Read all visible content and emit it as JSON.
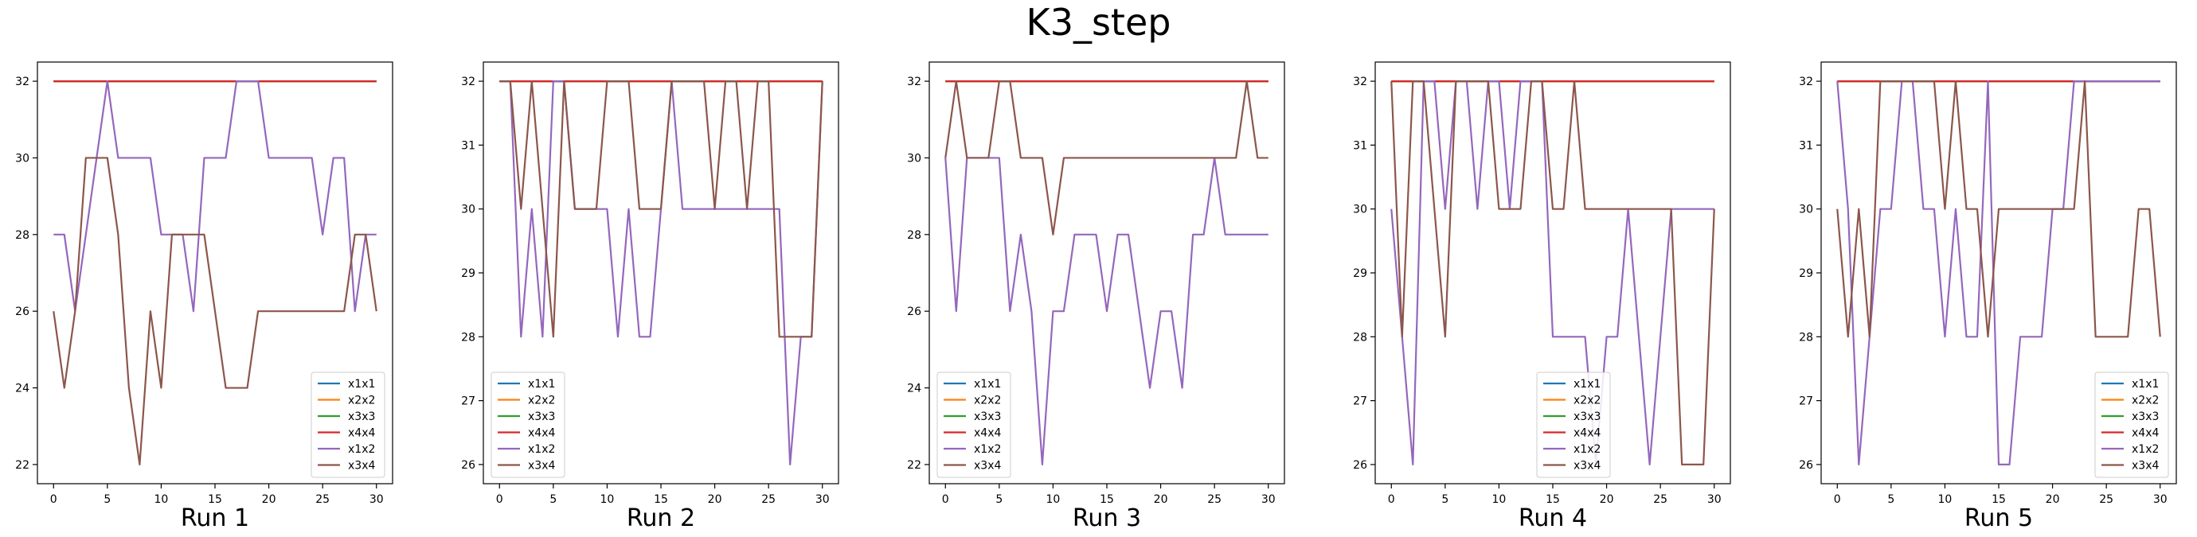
{
  "title": "K3_step",
  "colors": {
    "x1x1": "#1f77b4",
    "x2x2": "#ff7f0e",
    "x3x3": "#2ca02c",
    "x4x4": "#d62728",
    "x1x2": "#9467bd",
    "x3x4": "#8c564b"
  },
  "chart_data": [
    {
      "type": "line",
      "xlabel": "Run 1",
      "ylabel": "",
      "xlim": [
        -1.5,
        31.5
      ],
      "ylim": [
        21.5,
        32.5
      ],
      "xticks": [
        0,
        5,
        10,
        15,
        20,
        25,
        30
      ],
      "yticks": [
        22,
        24,
        26,
        28,
        30,
        32
      ],
      "legend": "bottom-right",
      "series": [
        {
          "name": "x1x1",
          "values": [
            32,
            32,
            32,
            32,
            32,
            32,
            32,
            32,
            32,
            32,
            32,
            32,
            32,
            32,
            32,
            32,
            32,
            32,
            32,
            32,
            32,
            32,
            32,
            32,
            32,
            32,
            32,
            32,
            32,
            32,
            32
          ]
        },
        {
          "name": "x2x2",
          "values": [
            32,
            32,
            32,
            32,
            32,
            32,
            32,
            32,
            32,
            32,
            32,
            32,
            32,
            32,
            32,
            32,
            32,
            32,
            32,
            32,
            32,
            32,
            32,
            32,
            32,
            32,
            32,
            32,
            32,
            32,
            32
          ]
        },
        {
          "name": "x3x3",
          "values": [
            32,
            32,
            32,
            32,
            32,
            32,
            32,
            32,
            32,
            32,
            32,
            32,
            32,
            32,
            32,
            32,
            32,
            32,
            32,
            32,
            32,
            32,
            32,
            32,
            32,
            32,
            32,
            32,
            32,
            32,
            32
          ]
        },
        {
          "name": "x4x4",
          "values": [
            32,
            32,
            32,
            32,
            32,
            32,
            32,
            32,
            32,
            32,
            32,
            32,
            32,
            32,
            32,
            32,
            32,
            32,
            32,
            32,
            32,
            32,
            32,
            32,
            32,
            32,
            32,
            32,
            32,
            32,
            32
          ]
        },
        {
          "name": "x1x2",
          "values": [
            28,
            28,
            26,
            28,
            30,
            32,
            30,
            30,
            30,
            30,
            28,
            28,
            28,
            26,
            30,
            30,
            30,
            32,
            32,
            32,
            30,
            30,
            30,
            30,
            30,
            28,
            30,
            30,
            26,
            28,
            28
          ]
        },
        {
          "name": "x3x4",
          "values": [
            26,
            24,
            26,
            30,
            30,
            30,
            28,
            24,
            22,
            26,
            24,
            28,
            28,
            28,
            28,
            26,
            24,
            24,
            24,
            26,
            26,
            26,
            26,
            26,
            26,
            26,
            26,
            26,
            28,
            28,
            26
          ]
        }
      ]
    },
    {
      "type": "line",
      "xlabel": "Run 2",
      "ylabel": "",
      "xlim": [
        -1.5,
        31.5
      ],
      "ylim": [
        25.7,
        32.3
      ],
      "xticks": [
        0,
        5,
        10,
        15,
        20,
        25,
        30
      ],
      "yticks": [
        26,
        27,
        28,
        29,
        30,
        31,
        32
      ],
      "legend": "bottom-left",
      "series": [
        {
          "name": "x1x1",
          "values": [
            32,
            32,
            32,
            32,
            32,
            32,
            32,
            32,
            32,
            32,
            32,
            32,
            32,
            32,
            32,
            32,
            32,
            32,
            32,
            32,
            32,
            32,
            32,
            32,
            32,
            32,
            32,
            32,
            32,
            32,
            32
          ]
        },
        {
          "name": "x2x2",
          "values": [
            32,
            32,
            32,
            32,
            32,
            32,
            32,
            32,
            32,
            32,
            32,
            32,
            32,
            32,
            32,
            32,
            32,
            32,
            32,
            32,
            32,
            32,
            32,
            32,
            32,
            32,
            32,
            32,
            32,
            32,
            32
          ]
        },
        {
          "name": "x3x3",
          "values": [
            32,
            32,
            32,
            32,
            32,
            32,
            32,
            32,
            32,
            32,
            32,
            32,
            32,
            32,
            32,
            32,
            32,
            32,
            32,
            32,
            32,
            32,
            32,
            32,
            32,
            32,
            32,
            32,
            32,
            32,
            32
          ]
        },
        {
          "name": "x4x4",
          "values": [
            32,
            32,
            32,
            32,
            32,
            32,
            32,
            32,
            32,
            32,
            32,
            32,
            32,
            32,
            32,
            32,
            32,
            32,
            32,
            32,
            32,
            32,
            32,
            32,
            32,
            32,
            32,
            32,
            32,
            32,
            32
          ]
        },
        {
          "name": "x1x2",
          "values": [
            32,
            32,
            28,
            30,
            28,
            32,
            32,
            30,
            30,
            30,
            30,
            28,
            30,
            28,
            28,
            30,
            32,
            30,
            30,
            30,
            30,
            30,
            30,
            30,
            30,
            30,
            30,
            26,
            28,
            28,
            32
          ]
        },
        {
          "name": "x3x4",
          "values": [
            32,
            32,
            30,
            32,
            30,
            28,
            32,
            30,
            30,
            30,
            32,
            32,
            32,
            30,
            30,
            30,
            32,
            32,
            32,
            32,
            30,
            32,
            32,
            30,
            32,
            32,
            28,
            28,
            28,
            28,
            32
          ]
        }
      ]
    },
    {
      "type": "line",
      "xlabel": "Run 3",
      "ylabel": "",
      "xlim": [
        -1.5,
        31.5
      ],
      "ylim": [
        21.5,
        32.5
      ],
      "xticks": [
        0,
        5,
        10,
        15,
        20,
        25,
        30
      ],
      "yticks": [
        22,
        24,
        26,
        28,
        30,
        32
      ],
      "legend": "bottom-left",
      "series": [
        {
          "name": "x1x1",
          "values": [
            32,
            32,
            32,
            32,
            32,
            32,
            32,
            32,
            32,
            32,
            32,
            32,
            32,
            32,
            32,
            32,
            32,
            32,
            32,
            32,
            32,
            32,
            32,
            32,
            32,
            32,
            32,
            32,
            32,
            32,
            32
          ]
        },
        {
          "name": "x2x2",
          "values": [
            32,
            32,
            32,
            32,
            32,
            32,
            32,
            32,
            32,
            32,
            32,
            32,
            32,
            32,
            32,
            32,
            32,
            32,
            32,
            32,
            32,
            32,
            32,
            32,
            32,
            32,
            32,
            32,
            32,
            32,
            32
          ]
        },
        {
          "name": "x3x3",
          "values": [
            32,
            32,
            32,
            32,
            32,
            32,
            32,
            32,
            32,
            32,
            32,
            32,
            32,
            32,
            32,
            32,
            32,
            32,
            32,
            32,
            32,
            32,
            32,
            32,
            32,
            32,
            32,
            32,
            32,
            32,
            32
          ]
        },
        {
          "name": "x4x4",
          "values": [
            32,
            32,
            32,
            32,
            32,
            32,
            32,
            32,
            32,
            32,
            32,
            32,
            32,
            32,
            32,
            32,
            32,
            32,
            32,
            32,
            32,
            32,
            32,
            32,
            32,
            32,
            32,
            32,
            32,
            32,
            32
          ]
        },
        {
          "name": "x1x2",
          "values": [
            30,
            26,
            30,
            30,
            30,
            30,
            26,
            28,
            26,
            22,
            26,
            26,
            28,
            28,
            28,
            26,
            28,
            28,
            26,
            24,
            26,
            26,
            24,
            28,
            28,
            30,
            28,
            28,
            28,
            28,
            28
          ]
        },
        {
          "name": "x3x4",
          "values": [
            30,
            32,
            30,
            30,
            30,
            32,
            32,
            30,
            30,
            30,
            28,
            30,
            30,
            30,
            30,
            30,
            30,
            30,
            30,
            30,
            30,
            30,
            30,
            30,
            30,
            30,
            30,
            30,
            32,
            30,
            30
          ]
        }
      ]
    },
    {
      "type": "line",
      "xlabel": "Run 4",
      "ylabel": "",
      "xlim": [
        -1.5,
        31.5
      ],
      "ylim": [
        25.7,
        32.3
      ],
      "xticks": [
        0,
        5,
        10,
        15,
        20,
        25,
        30
      ],
      "yticks": [
        26,
        27,
        28,
        29,
        30,
        31,
        32
      ],
      "legend": "bottom-center",
      "series": [
        {
          "name": "x1x1",
          "values": [
            32,
            32,
            32,
            32,
            32,
            32,
            32,
            32,
            32,
            32,
            32,
            32,
            32,
            32,
            32,
            32,
            32,
            32,
            32,
            32,
            32,
            32,
            32,
            32,
            32,
            32,
            32,
            32,
            32,
            32,
            32
          ]
        },
        {
          "name": "x2x2",
          "values": [
            32,
            32,
            32,
            32,
            32,
            32,
            32,
            32,
            32,
            32,
            32,
            32,
            32,
            32,
            32,
            32,
            32,
            32,
            32,
            32,
            32,
            32,
            32,
            32,
            32,
            32,
            32,
            32,
            32,
            32,
            32
          ]
        },
        {
          "name": "x3x3",
          "values": [
            32,
            32,
            32,
            32,
            32,
            32,
            32,
            32,
            32,
            32,
            32,
            32,
            32,
            32,
            32,
            32,
            32,
            32,
            32,
            32,
            32,
            32,
            32,
            32,
            32,
            32,
            32,
            32,
            32,
            32,
            32
          ]
        },
        {
          "name": "x4x4",
          "values": [
            32,
            32,
            32,
            32,
            32,
            32,
            32,
            32,
            32,
            32,
            32,
            32,
            32,
            32,
            32,
            32,
            32,
            32,
            32,
            32,
            32,
            32,
            32,
            32,
            32,
            32,
            32,
            32,
            32,
            32,
            32
          ]
        },
        {
          "name": "x1x2",
          "values": [
            30,
            28,
            26,
            32,
            32,
            30,
            32,
            32,
            30,
            32,
            32,
            30,
            32,
            32,
            32,
            28,
            28,
            28,
            28,
            26,
            28,
            28,
            30,
            28,
            26,
            28,
            30,
            30,
            30,
            30,
            30
          ]
        },
        {
          "name": "x3x4",
          "values": [
            32,
            28,
            32,
            32,
            30,
            28,
            32,
            32,
            32,
            32,
            30,
            30,
            30,
            32,
            32,
            30,
            30,
            32,
            30,
            30,
            30,
            30,
            30,
            30,
            30,
            30,
            30,
            26,
            26,
            26,
            30
          ]
        }
      ]
    },
    {
      "type": "line",
      "xlabel": "Run 5",
      "ylabel": "",
      "xlim": [
        -1.5,
        31.5
      ],
      "ylim": [
        25.7,
        32.3
      ],
      "xticks": [
        0,
        5,
        10,
        15,
        20,
        25,
        30
      ],
      "yticks": [
        26,
        27,
        28,
        29,
        30,
        31,
        32
      ],
      "legend": "bottom-right",
      "series": [
        {
          "name": "x1x1",
          "values": [
            32,
            32,
            32,
            32,
            32,
            32,
            32,
            32,
            32,
            32,
            32,
            32,
            32,
            32,
            32,
            32,
            32,
            32,
            32,
            32,
            32,
            32,
            32,
            32,
            32,
            32,
            32,
            32,
            32,
            32,
            32
          ]
        },
        {
          "name": "x2x2",
          "values": [
            32,
            32,
            32,
            32,
            32,
            32,
            32,
            32,
            32,
            32,
            32,
            32,
            32,
            32,
            32,
            32,
            32,
            32,
            32,
            32,
            32,
            32,
            32,
            32,
            32,
            32,
            32,
            32,
            32,
            32,
            32
          ]
        },
        {
          "name": "x3x3",
          "values": [
            32,
            32,
            32,
            32,
            32,
            32,
            32,
            32,
            32,
            32,
            32,
            32,
            32,
            32,
            32,
            32,
            32,
            32,
            32,
            32,
            32,
            32,
            32,
            32,
            32,
            32,
            32,
            32,
            32,
            32,
            32
          ]
        },
        {
          "name": "x4x4",
          "values": [
            32,
            32,
            32,
            32,
            32,
            32,
            32,
            32,
            32,
            32,
            32,
            32,
            32,
            32,
            32,
            32,
            32,
            32,
            32,
            32,
            32,
            32,
            32,
            32,
            32,
            32,
            32,
            32,
            32,
            32,
            32
          ]
        },
        {
          "name": "x1x2",
          "values": [
            32,
            30,
            26,
            28,
            30,
            30,
            32,
            32,
            30,
            30,
            28,
            30,
            28,
            28,
            32,
            26,
            26,
            28,
            28,
            28,
            30,
            30,
            32,
            32,
            32,
            32,
            32,
            32,
            32,
            32,
            32
          ]
        },
        {
          "name": "x3x4",
          "values": [
            30,
            28,
            30,
            28,
            32,
            32,
            32,
            32,
            32,
            32,
            30,
            32,
            30,
            30,
            28,
            30,
            30,
            30,
            30,
            30,
            30,
            30,
            30,
            32,
            28,
            28,
            28,
            28,
            30,
            30,
            28
          ]
        }
      ]
    }
  ]
}
